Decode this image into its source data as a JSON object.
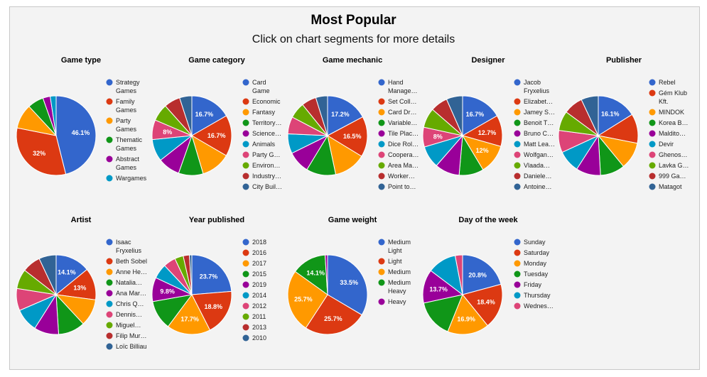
{
  "title": "Most Popular",
  "subtitle": "Click on chart segments for more details",
  "chart_data": [
    {
      "type": "pie",
      "title": "Game type",
      "legend_position": "right",
      "categories": [
        "Strategy Games",
        "Family Games",
        "Party Games",
        "Thematic Games",
        "Abstract Games",
        "Wargames"
      ],
      "legend_labels": [
        [
          "Strategy",
          "Games"
        ],
        [
          "Family",
          "Games"
        ],
        [
          "Party",
          "Games"
        ],
        [
          "Thematic",
          "Games"
        ],
        [
          "Abstract",
          "Games"
        ],
        [
          "Wargames"
        ]
      ],
      "values": [
        46.1,
        32,
        10,
        6.5,
        3,
        2.4
      ],
      "slice_labels": [
        "46.1%",
        "32%",
        "",
        "",
        "",
        ""
      ],
      "colors": [
        "#3366cc",
        "#dc3912",
        "#ff9900",
        "#109618",
        "#990099",
        "#0099c6"
      ]
    },
    {
      "type": "pie",
      "title": "Game category",
      "legend_position": "right",
      "categories": [
        "Card Game",
        "Economic",
        "Fantasy",
        "Territory…",
        "Science…",
        "Animals",
        "Party G…",
        "Environ…",
        "Industry…",
        "City Buil…"
      ],
      "legend_labels": [
        [
          "Card",
          "Game"
        ],
        [
          "Economic"
        ],
        [
          "Fantasy"
        ],
        [
          "Territory…"
        ],
        [
          "Science…"
        ],
        [
          "Animals"
        ],
        [
          "Party G…"
        ],
        [
          "Environ…"
        ],
        [
          "Industry…"
        ],
        [
          "City Buil…"
        ]
      ],
      "values": [
        16.7,
        16.7,
        12,
        10,
        9,
        9,
        8,
        7,
        6.6,
        5
      ],
      "slice_labels": [
        "16.7%",
        "16.7%",
        "",
        "",
        "",
        "",
        "8%",
        "",
        "",
        ""
      ],
      "colors": [
        "#3366cc",
        "#dc3912",
        "#ff9900",
        "#109618",
        "#990099",
        "#0099c6",
        "#dd4477",
        "#66aa00",
        "#b82e2e",
        "#316395"
      ]
    },
    {
      "type": "pie",
      "title": "Game mechanic",
      "legend_position": "right",
      "categories": [
        "Hand Manage…",
        "Set Coll…",
        "Card Dr…",
        "Variable…",
        "Tile Plac…",
        "Dice Rol…",
        "Coopera…",
        "Area Ma…",
        "Worker…",
        "Point to…"
      ],
      "legend_labels": [
        [
          "Hand",
          "Manage…"
        ],
        [
          "Set Coll…"
        ],
        [
          "Card Dr…"
        ],
        [
          "Variable…"
        ],
        [
          "Tile Plac…"
        ],
        [
          "Dice Rol…"
        ],
        [
          "Coopera…"
        ],
        [
          "Area Ma…"
        ],
        [
          "Worker…"
        ],
        [
          "Point to…"
        ]
      ],
      "values": [
        17.2,
        16.5,
        13,
        12,
        9,
        8,
        7,
        6.5,
        6,
        4.8
      ],
      "slice_labels": [
        "17.2%",
        "16.5%",
        "",
        "",
        "",
        "",
        "",
        "",
        "",
        ""
      ],
      "colors": [
        "#3366cc",
        "#dc3912",
        "#ff9900",
        "#109618",
        "#990099",
        "#0099c6",
        "#dd4477",
        "#66aa00",
        "#b82e2e",
        "#316395"
      ]
    },
    {
      "type": "pie",
      "title": "Designer",
      "legend_position": "right",
      "categories": [
        "Jacob Fryxelius",
        "Elizabet…",
        "Jamey S…",
        "Benoit T…",
        "Bruno C…",
        "Matt Lea…",
        "Wolfgan…",
        "Vlaada…",
        "Daniele…",
        "Antoine…"
      ],
      "legend_labels": [
        [
          "Jacob",
          "Fryxelius"
        ],
        [
          "Elizabet…"
        ],
        [
          "Jamey S…"
        ],
        [
          "Benoit T…"
        ],
        [
          "Bruno C…"
        ],
        [
          "Matt Lea…"
        ],
        [
          "Wolfgan…"
        ],
        [
          "Vlaada…"
        ],
        [
          "Daniele…"
        ],
        [
          "Antoine…"
        ]
      ],
      "values": [
        16.7,
        12.7,
        12,
        10,
        10,
        9,
        8,
        8,
        7,
        6.6
      ],
      "slice_labels": [
        "16.7%",
        "12.7%",
        "12%",
        "",
        "",
        "",
        "8%",
        "",
        "",
        ""
      ],
      "colors": [
        "#3366cc",
        "#dc3912",
        "#ff9900",
        "#109618",
        "#990099",
        "#0099c6",
        "#dd4477",
        "#66aa00",
        "#b82e2e",
        "#316395"
      ]
    },
    {
      "type": "pie",
      "title": "Publisher",
      "legend_position": "right",
      "categories": [
        "Rebel",
        "Gém Klub Kft.",
        "MINDOK",
        "Korea B…",
        "Maldito…",
        "Devir",
        "Ghenos…",
        "Lavka G…",
        "999 Ga…",
        "Matagot"
      ],
      "legend_labels": [
        [
          "Rebel"
        ],
        [
          "Gém Klub",
          "Kft."
        ],
        [
          "MINDOK"
        ],
        [
          "Korea B…"
        ],
        [
          "Maldito…"
        ],
        [
          "Devir"
        ],
        [
          "Ghenos…"
        ],
        [
          "Lavka G…"
        ],
        [
          "999 Ga…"
        ],
        [
          "Matagot"
        ]
      ],
      "values": [
        16.1,
        12,
        11,
        10,
        10,
        9,
        9,
        8,
        7.9,
        7
      ],
      "slice_labels": [
        "16.1%",
        "",
        "",
        "",
        "",
        "",
        "",
        "",
        "",
        ""
      ],
      "colors": [
        "#3366cc",
        "#dc3912",
        "#ff9900",
        "#109618",
        "#990099",
        "#0099c6",
        "#dd4477",
        "#66aa00",
        "#b82e2e",
        "#316395"
      ]
    },
    {
      "type": "pie",
      "title": "Artist",
      "legend_position": "right",
      "categories": [
        "Isaac Fryxelius",
        "Beth Sobel",
        "Anne He…",
        "Natalia…",
        "Ana Mar…",
        "Chris Q…",
        "Dennis…",
        "Miguel…",
        "Filip Mur…",
        "Loïc Billiau"
      ],
      "legend_labels": [
        [
          "Isaac",
          "Fryxelius"
        ],
        [
          "Beth Sobel"
        ],
        [
          "Anne He…"
        ],
        [
          "Natalia…"
        ],
        [
          "Ana Mar…"
        ],
        [
          "Chris Q…"
        ],
        [
          "Dennis…"
        ],
        [
          "Miguel…"
        ],
        [
          "Filip Mur…"
        ],
        [
          "Loïc Billiau"
        ]
      ],
      "values": [
        14.1,
        13,
        11,
        10.9,
        10,
        9.5,
        9,
        8,
        7.5,
        7
      ],
      "slice_labels": [
        "14.1%",
        "13%",
        "",
        "",
        "",
        "",
        "",
        "",
        "",
        ""
      ],
      "colors": [
        "#3366cc",
        "#dc3912",
        "#ff9900",
        "#109618",
        "#990099",
        "#0099c6",
        "#dd4477",
        "#66aa00",
        "#b82e2e",
        "#316395"
      ]
    },
    {
      "type": "pie",
      "title": "Year published",
      "legend_position": "right",
      "categories": [
        "2018",
        "2016",
        "2017",
        "2015",
        "2019",
        "2014",
        "2012",
        "2011",
        "2013",
        "2010"
      ],
      "legend_labels": [
        [
          "2018"
        ],
        [
          "2016"
        ],
        [
          "2017"
        ],
        [
          "2015"
        ],
        [
          "2019"
        ],
        [
          "2014"
        ],
        [
          "2012"
        ],
        [
          "2011"
        ],
        [
          "2013"
        ],
        [
          "2010"
        ]
      ],
      "values": [
        23.7,
        18.8,
        17.7,
        12,
        9.8,
        6,
        5,
        3.5,
        2.5,
        1
      ],
      "slice_labels": [
        "23.7%",
        "18.8%",
        "17.7%",
        "",
        "9.8%",
        "",
        "",
        "",
        "",
        ""
      ],
      "colors": [
        "#3366cc",
        "#dc3912",
        "#ff9900",
        "#109618",
        "#990099",
        "#0099c6",
        "#dd4477",
        "#66aa00",
        "#b82e2e",
        "#316395"
      ]
    },
    {
      "type": "pie",
      "title": "Game weight",
      "legend_position": "right",
      "categories": [
        "Medium Light",
        "Light",
        "Medium",
        "Medium Heavy",
        "Heavy"
      ],
      "legend_labels": [
        [
          "Medium",
          "Light"
        ],
        [
          "Light"
        ],
        [
          "Medium"
        ],
        [
          "Medium",
          "Heavy"
        ],
        [
          "Heavy"
        ]
      ],
      "values": [
        33.5,
        25.7,
        25.7,
        14.1,
        1
      ],
      "slice_labels": [
        "33.5%",
        "25.7%",
        "25.7%",
        "14.1%",
        ""
      ],
      "colors": [
        "#3366cc",
        "#dc3912",
        "#ff9900",
        "#109618",
        "#990099"
      ]
    },
    {
      "type": "pie",
      "title": "Day of the week",
      "legend_position": "right",
      "categories": [
        "Sunday",
        "Saturday",
        "Monday",
        "Tuesday",
        "Friday",
        "Thursday",
        "Wednes…"
      ],
      "legend_labels": [
        [
          "Sunday"
        ],
        [
          "Saturday"
        ],
        [
          "Monday"
        ],
        [
          "Tuesday"
        ],
        [
          "Friday"
        ],
        [
          "Thursday"
        ],
        [
          "Wednes…"
        ]
      ],
      "values": [
        20.8,
        18.4,
        16.9,
        15.5,
        13.7,
        11.7,
        3
      ],
      "slice_labels": [
        "20.8%",
        "18.4%",
        "16.9%",
        "",
        "13.7%",
        "",
        ""
      ],
      "colors": [
        "#3366cc",
        "#dc3912",
        "#ff9900",
        "#109618",
        "#990099",
        "#0099c6",
        "#dd4477"
      ]
    }
  ]
}
